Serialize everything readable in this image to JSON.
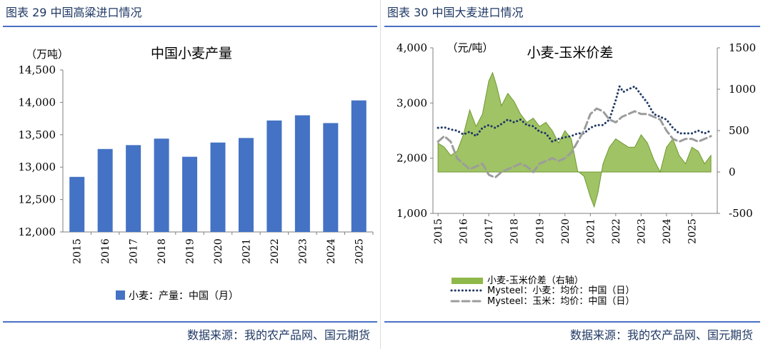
{
  "left": {
    "fig_title": "图表 29  中国高粱进口情况",
    "source": "数据来源：我的农产品网、国元期货"
  },
  "right": {
    "fig_title": "图表 30  中国大麦进口情况",
    "source": "数据来源：我的农产品网、国元期货"
  },
  "chart_data": [
    {
      "type": "bar",
      "title": "中国小麦产量",
      "unit": "（万吨）",
      "categories": [
        "2015",
        "2016",
        "2017",
        "2018",
        "2019",
        "2020",
        "2021",
        "2022",
        "2023",
        "2024",
        "2025"
      ],
      "values": [
        12850,
        13280,
        13340,
        13440,
        13160,
        13380,
        13450,
        13720,
        13800,
        13680,
        14030
      ],
      "ylim": [
        12000,
        14500
      ],
      "yticks": [
        "12,000",
        "12,500",
        "13,000",
        "13,500",
        "14,000",
        "14,500"
      ],
      "color": "#4472c4",
      "legend": "小麦：产量：中国（月）"
    },
    {
      "type": "line",
      "title": "小麦-玉米价差",
      "unit": "（元/吨）",
      "ylim": [
        1000,
        4000
      ],
      "yticks": [
        "1,000",
        "2,000",
        "3,000",
        "4,000"
      ],
      "y2lim": [
        -500,
        1500
      ],
      "y2ticks": [
        "-500",
        "0",
        "500",
        "1000",
        "1500"
      ],
      "xticks": [
        "2015",
        "2016",
        "2017",
        "2018",
        "2019",
        "2020",
        "2021",
        "2022",
        "2023",
        "2024",
        "2025"
      ],
      "series": [
        {
          "name": "小麦-玉米价差（右轴）",
          "axis": "right",
          "color": "#8fb84a",
          "style": "area",
          "x": [
            2015.0,
            2015.25,
            2015.5,
            2015.75,
            2016.0,
            2016.25,
            2016.5,
            2016.75,
            2017.0,
            2017.15,
            2017.3,
            2017.5,
            2017.75,
            2018.0,
            2018.25,
            2018.5,
            2018.75,
            2019.0,
            2019.25,
            2019.5,
            2019.75,
            2020.0,
            2020.25,
            2020.5,
            2020.75,
            2021.0,
            2021.15,
            2021.3,
            2021.5,
            2021.75,
            2022.0,
            2022.25,
            2022.5,
            2022.75,
            2023.0,
            2023.25,
            2023.5,
            2023.75,
            2024.0,
            2024.25,
            2024.5,
            2024.75,
            2025.0,
            2025.25,
            2025.5,
            2025.75
          ],
          "values": [
            350,
            300,
            200,
            250,
            450,
            750,
            550,
            700,
            1100,
            1200,
            1050,
            800,
            950,
            850,
            700,
            600,
            650,
            550,
            600,
            500,
            350,
            500,
            400,
            10,
            -50,
            -300,
            -420,
            -250,
            100,
            300,
            400,
            350,
            300,
            300,
            450,
            350,
            150,
            0,
            300,
            400,
            200,
            100,
            300,
            250,
            100,
            200
          ]
        },
        {
          "name": "Mysteel：小麦：均价：中国（日）",
          "axis": "left",
          "color": "#1f3864",
          "style": "dotted",
          "x": [
            2015.0,
            2015.25,
            2015.5,
            2015.75,
            2016.0,
            2016.25,
            2016.5,
            2016.75,
            2017.0,
            2017.25,
            2017.5,
            2017.75,
            2018.0,
            2018.25,
            2018.5,
            2018.75,
            2019.0,
            2019.25,
            2019.5,
            2019.75,
            2020.0,
            2020.25,
            2020.5,
            2020.75,
            2021.0,
            2021.25,
            2021.5,
            2021.75,
            2022.0,
            2022.15,
            2022.3,
            2022.5,
            2022.75,
            2023.0,
            2023.25,
            2023.5,
            2023.75,
            2024.0,
            2024.25,
            2024.5,
            2024.75,
            2025.0,
            2025.25,
            2025.5,
            2025.75
          ],
          "values": [
            2550,
            2560,
            2520,
            2500,
            2430,
            2480,
            2400,
            2550,
            2600,
            2550,
            2620,
            2700,
            2650,
            2700,
            2600,
            2580,
            2480,
            2450,
            2300,
            2350,
            2380,
            2400,
            2450,
            2450,
            2550,
            2600,
            2600,
            2700,
            3050,
            3300,
            3200,
            3250,
            3300,
            3150,
            3000,
            2800,
            2750,
            2700,
            2550,
            2450,
            2450,
            2450,
            2500,
            2450,
            2500
          ]
        },
        {
          "name": "Mysteel：玉米：均价：中国（日）",
          "axis": "left",
          "color": "#9c9c9c",
          "style": "dashed",
          "x": [
            2015.0,
            2015.25,
            2015.5,
            2015.75,
            2016.0,
            2016.25,
            2016.5,
            2016.75,
            2017.0,
            2017.25,
            2017.5,
            2017.75,
            2018.0,
            2018.25,
            2018.5,
            2018.75,
            2019.0,
            2019.25,
            2019.5,
            2019.75,
            2020.0,
            2020.25,
            2020.5,
            2020.75,
            2021.0,
            2021.25,
            2021.5,
            2021.75,
            2022.0,
            2022.25,
            2022.5,
            2022.75,
            2023.0,
            2023.25,
            2023.5,
            2023.75,
            2024.0,
            2024.25,
            2024.5,
            2024.75,
            2025.0,
            2025.25,
            2025.5,
            2025.75
          ],
          "values": [
            2300,
            2400,
            2300,
            2000,
            1900,
            1800,
            1850,
            1900,
            1700,
            1650,
            1750,
            1800,
            1850,
            1900,
            1850,
            1750,
            1900,
            1950,
            2000,
            1950,
            2000,
            2100,
            2300,
            2500,
            2800,
            2900,
            2850,
            2700,
            2650,
            2750,
            2800,
            2850,
            2800,
            2800,
            2750,
            2700,
            2500,
            2350,
            2300,
            2350,
            2350,
            2300,
            2350,
            2400
          ]
        }
      ]
    }
  ]
}
